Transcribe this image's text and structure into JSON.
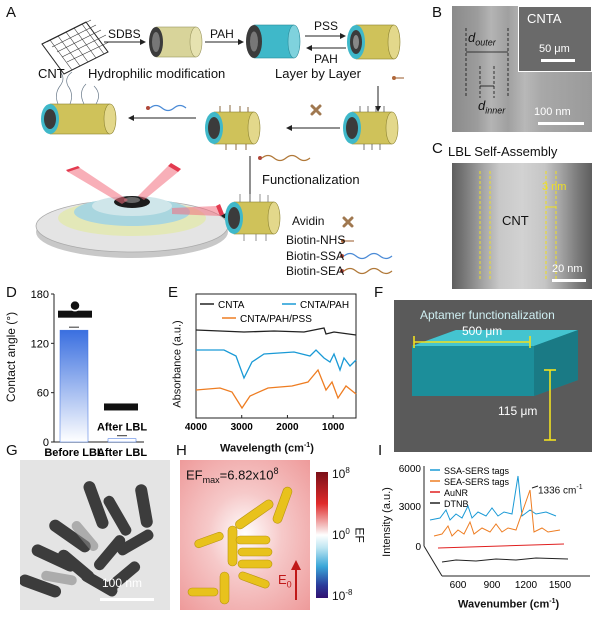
{
  "panels": {
    "A": {
      "letter": "A",
      "cnt_label": "CNT",
      "step_sdbs": "SDBS",
      "step_pah": "PAH",
      "step_pss": "PSS",
      "step_pah_back": "PAH",
      "hydrophilic_label": "Hydrophilic modification",
      "lbl_label": "Layer by Layer",
      "functionalization_label": "Functionalization",
      "legend": [
        "Avidin",
        "Biotin-NHS",
        "Biotin-SSA",
        "Biotin-SEA"
      ],
      "colors": {
        "tube_yellow": "#d8d49a",
        "tube_teal": "#3fb8c9",
        "tube_gold": "#cfc25a",
        "ring_blue": "#a9d6df"
      }
    },
    "B": {
      "letter": "B",
      "d_outer": "d",
      "d_outer_sub": "outer",
      "d_inner": "d",
      "d_inner_sub": "inner",
      "inset_label": "CNTA",
      "inset_scale": "50 μm",
      "scale": "100 nm"
    },
    "C": {
      "letter": "C",
      "title": "LBL Self-Assembly",
      "thickness": "3 nm",
      "center_label": "CNT",
      "scale": "20 nm"
    },
    "D": {
      "letter": "D",
      "ylabel": "Contact angle (°)",
      "chart_data": {
        "type": "bar",
        "categories": [
          "Before LBL",
          "After LBL"
        ],
        "values": [
          136,
          4
        ],
        "ylim": [
          0,
          180
        ],
        "yticks": [
          0,
          60,
          120,
          180
        ],
        "annotation": "After LBL"
      }
    },
    "E": {
      "letter": "E",
      "ylabel": "Absorbance (a.u.)",
      "xlabel": "Wavelength (cm",
      "xlabel_sup": "-1",
      "xlabel_end": ")",
      "chart_data": {
        "type": "line",
        "xlim": [
          4000,
          500
        ],
        "xticks": [
          4000,
          3000,
          2000,
          1000
        ],
        "series": [
          {
            "name": "CNTA",
            "color": "#222222"
          },
          {
            "name": "CNTA/PAH",
            "color": "#1a9ad6"
          },
          {
            "name": "CNTA/PAH/PSS",
            "color": "#ee7d22"
          }
        ]
      }
    },
    "F": {
      "letter": "F",
      "title": "Aptamer functionalization",
      "width_label": "500 μm",
      "height_label": "115 μm"
    },
    "G": {
      "letter": "G",
      "scale": "100 nm"
    },
    "H": {
      "letter": "H",
      "ef_max": "EF",
      "ef_max_sub": "max",
      "ef_max_value": "=6.82x10",
      "ef_max_exp": "8",
      "cbar_label": "EF",
      "cbar_ticks": [
        {
          "base": "10",
          "exp": "8"
        },
        {
          "base": "10",
          "exp": "0"
        },
        {
          "base": "10",
          "exp": "-8"
        }
      ],
      "field_label": "E",
      "field_sub": "0"
    },
    "I": {
      "letter": "I",
      "ylabel": "Intensity (a.u.)",
      "xlabel": "Wavenumber (cm",
      "xlabel_sup": "-1",
      "xlabel_end": ")",
      "peak_label": "1336 cm",
      "peak_sup": "-1",
      "chart_data": {
        "type": "line",
        "yticks": [
          0,
          3000,
          6000
        ],
        "xticks": [
          600,
          900,
          1200,
          1500
        ],
        "series": [
          {
            "name": "SSA-SERS tags",
            "color": "#1a9ad6"
          },
          {
            "name": "SEA-SERS tags",
            "color": "#ee7d22"
          },
          {
            "name": "AuNR",
            "color": "#e02020"
          },
          {
            "name": "DTNB",
            "color": "#222222"
          }
        ]
      }
    }
  }
}
